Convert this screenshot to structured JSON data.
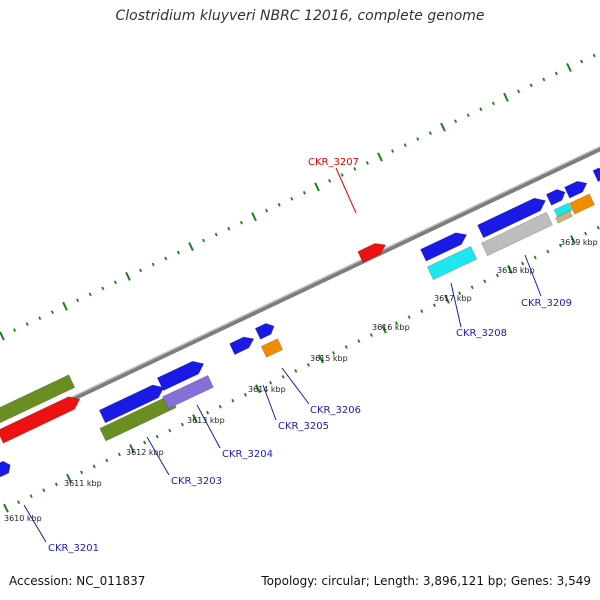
{
  "title": "Clostridium kluyveri NBRC 12016, complete genome",
  "footer": {
    "accession": "Accession: NC_011837",
    "summary": "Topology: circular; Length: 3,896,121 bp; Genes: 3,549"
  },
  "colors": {
    "backbone": "#888888",
    "tick": "#1e7d1e",
    "label_blue": "#1b1bb8",
    "label_red": "#e00000",
    "blue": "#1a1ae6",
    "red": "#ee1111",
    "olive": "#6b8e23",
    "slate": "#8470d8",
    "orange": "#f08c00",
    "cyan": "#1ee6ee",
    "gray": "#bdbdbd",
    "tan": "#c9b47a"
  },
  "scale_labels": [
    {
      "kbp": 3610,
      "text": "3610 kbp"
    },
    {
      "kbp": 3611,
      "text": "3611 kbp"
    },
    {
      "kbp": 3612,
      "text": "3612 kbp"
    },
    {
      "kbp": 3613,
      "text": "3613 kbp"
    },
    {
      "kbp": 3614,
      "text": "3614 kbp"
    },
    {
      "kbp": 3615,
      "text": "3615 kbp"
    },
    {
      "kbp": 3616,
      "text": "3616 kbp"
    },
    {
      "kbp": 3617,
      "text": "3617 kbp"
    },
    {
      "kbp": 3618,
      "text": "3618 kbp"
    },
    {
      "kbp": 3619,
      "text": "3619 kbp"
    }
  ],
  "gene_labels": [
    {
      "id": "CKR_3201",
      "color": "label_blue"
    },
    {
      "id": "CKR_3203",
      "color": "label_blue"
    },
    {
      "id": "CKR_3204",
      "color": "label_blue"
    },
    {
      "id": "CKR_3205",
      "color": "label_blue"
    },
    {
      "id": "CKR_3206",
      "color": "label_blue"
    },
    {
      "id": "CKR_3207",
      "color": "label_red"
    },
    {
      "id": "CKR_3208",
      "color": "label_blue"
    },
    {
      "id": "CKR_3209",
      "color": "label_blue"
    }
  ]
}
